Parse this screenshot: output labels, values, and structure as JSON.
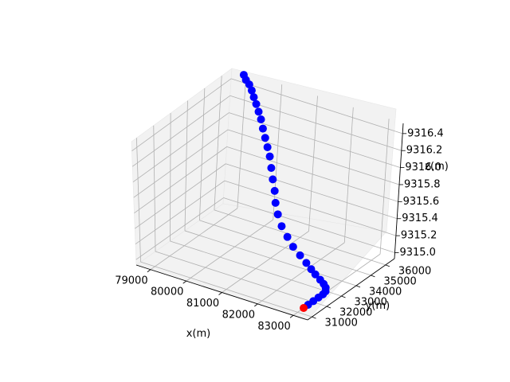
{
  "chart_data": {
    "type": "scatter",
    "projection": "3d",
    "xlabel": "x(m)",
    "ylabel": "y(m)",
    "zlabel": "z(m)",
    "x_ticks": [
      "79000",
      "80000",
      "81000",
      "82000",
      "83000"
    ],
    "y_ticks": [
      "31000",
      "32000",
      "33000",
      "34000",
      "35000",
      "36000"
    ],
    "z_ticks": [
      "9315.0",
      "9315.2",
      "9315.4",
      "9315.6",
      "9315.8",
      "9316.0",
      "9316.2",
      "9316.4"
    ],
    "xlim": [
      78600,
      83400
    ],
    "ylim": [
      30700,
      36600
    ],
    "zlim": [
      9314.93,
      9316.52
    ],
    "grid": true,
    "pane_color": "#f2f2f2",
    "series": [
      {
        "color": "#0000ff",
        "x": [
          83150,
          83150,
          83150,
          83150,
          83120,
          83020,
          82880,
          82700,
          82480,
          82280,
          82060,
          81800,
          81520,
          81250,
          80980,
          80760,
          80600,
          80480,
          80350,
          80230,
          80110,
          79990,
          79870,
          79750,
          79640,
          79540,
          79440,
          79340,
          79250,
          79150,
          79050,
          78960
        ],
        "y": [
          31350,
          31700,
          32050,
          32350,
          32600,
          32850,
          33050,
          33250,
          33450,
          33650,
          33850,
          34050,
          34250,
          34500,
          34750,
          35000,
          35200,
          35400,
          35550,
          35700,
          35850,
          35950,
          36050,
          36150,
          36250,
          36300,
          36350,
          36400,
          36450,
          36500,
          36500,
          36550
        ],
        "z": [
          9315.0,
          9315.0,
          9315.0,
          9315.0,
          9315.0,
          9315.0,
          9315.0,
          9315.0,
          9315.01,
          9315.02,
          9315.04,
          9315.07,
          9315.11,
          9315.16,
          9315.22,
          9315.3,
          9315.39,
          9315.49,
          9315.59,
          9315.69,
          9315.79,
          9315.87,
          9315.95,
          9316.03,
          9316.11,
          9316.18,
          9316.25,
          9316.31,
          9316.37,
          9316.42,
          9316.46,
          9316.5
        ]
      },
      {
        "color": "#ff0000",
        "x": [
          83150
        ],
        "y": [
          31050
        ],
        "z": [
          9315.0
        ]
      }
    ]
  }
}
